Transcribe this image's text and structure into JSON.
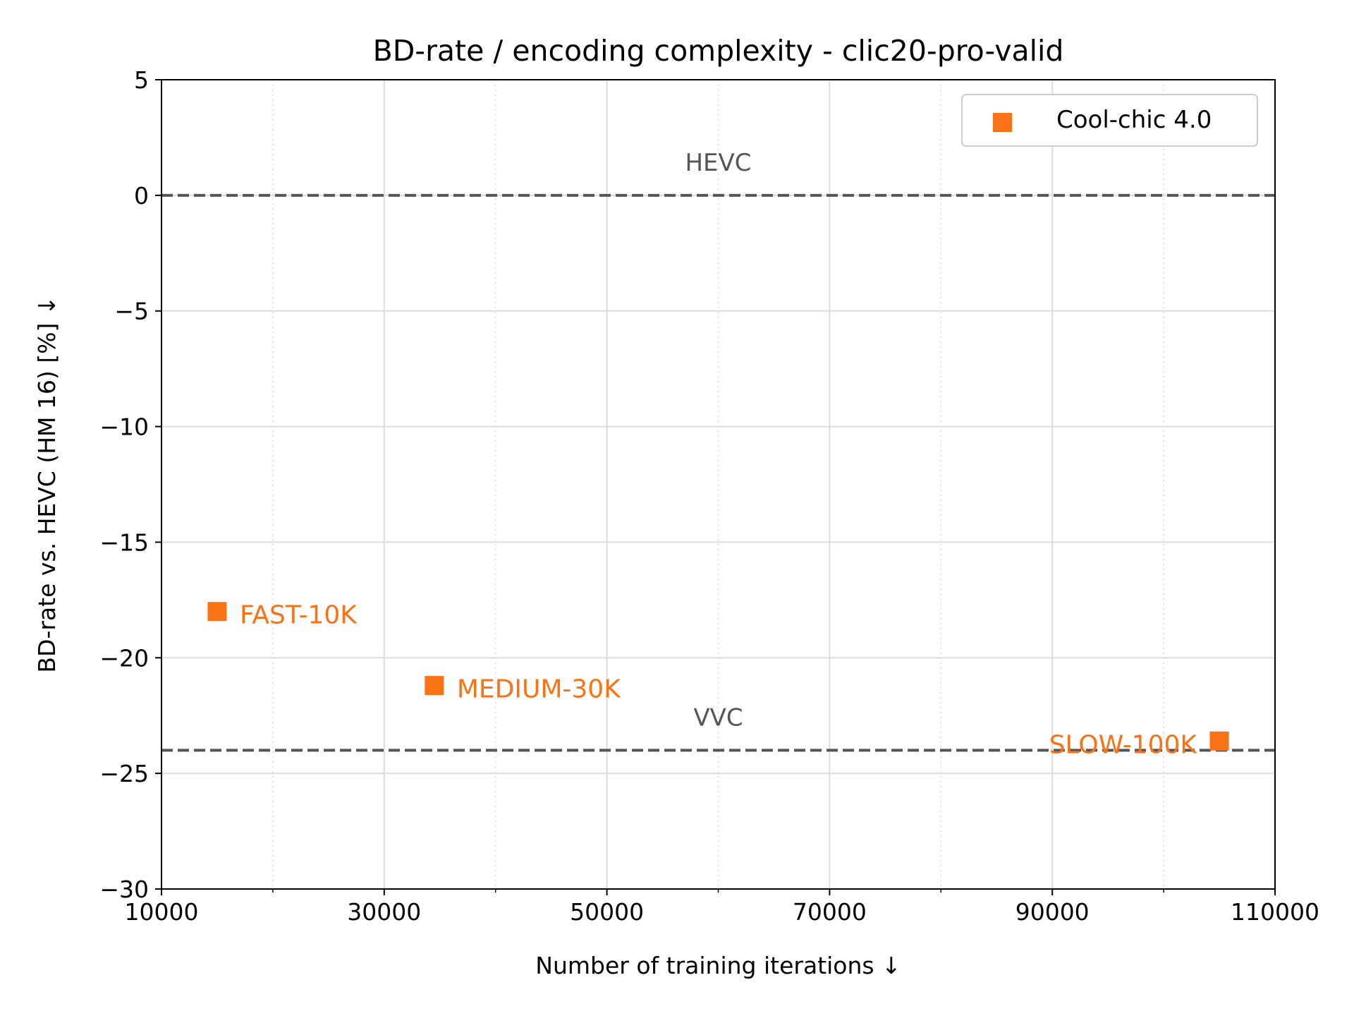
{
  "chart_data": {
    "type": "scatter",
    "title": "BD-rate / encoding complexity  - clic20-pro-valid",
    "xlabel": "Number of training iterations ↓",
    "ylabel": "BD-rate vs. HEVC (HM 16) [%]  ↓",
    "xlim": [
      10000,
      110000
    ],
    "ylim": [
      -30,
      5
    ],
    "x_ticks": [
      10000,
      30000,
      50000,
      70000,
      90000,
      110000
    ],
    "x_tick_labels": [
      "10000",
      "30000",
      "50000",
      "70000",
      "90000",
      "110000"
    ],
    "x_minor_ticks": [
      20000,
      40000,
      60000,
      80000,
      100000
    ],
    "y_ticks": [
      5,
      0,
      -5,
      -10,
      -15,
      -20,
      -25,
      -30
    ],
    "y_tick_labels": [
      "5",
      "0",
      "−5",
      "−10",
      "−15",
      "−20",
      "−25",
      "−30"
    ],
    "grid": true,
    "legend_position": "top-right",
    "series": [
      {
        "name": "Cool-chic 4.0",
        "color": "#f97316",
        "marker": "square",
        "points": [
          {
            "x": 15000,
            "y": -18.0,
            "label": "FAST-10K",
            "label_side": "right"
          },
          {
            "x": 34500,
            "y": -21.2,
            "label": "MEDIUM-30K",
            "label_side": "right"
          },
          {
            "x": 105000,
            "y": -23.6,
            "label": "SLOW-100K",
            "label_side": "left"
          }
        ]
      }
    ],
    "reference_lines": [
      {
        "label": "HEVC",
        "y": 0,
        "color": "#555555",
        "style": "dashed"
      },
      {
        "label": "VVC",
        "y": -24,
        "color": "#555555",
        "style": "dashed"
      }
    ]
  }
}
